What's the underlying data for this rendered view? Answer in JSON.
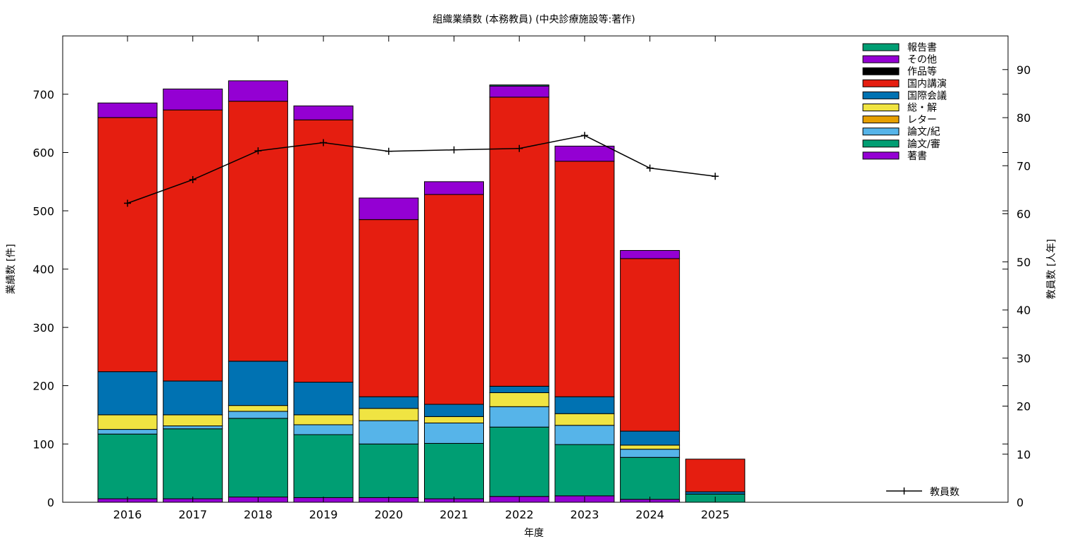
{
  "chart_data": {
    "type": "bar",
    "stacked": true,
    "title": "組織業績数 (本務教員) (中央診療施設等:著作)",
    "xlabel": "年度",
    "ylabel": "業績数 [件]",
    "y2label": "教員数 [人年]",
    "categories": [
      "2016",
      "2017",
      "2018",
      "2019",
      "2020",
      "2021",
      "2022",
      "2023",
      "2024",
      "2025"
    ],
    "ylim": [
      0,
      800
    ],
    "yticks": [
      0,
      100,
      200,
      300,
      400,
      500,
      600,
      700
    ],
    "y2lim": [
      0,
      97
    ],
    "y2ticks": [
      0,
      10,
      20,
      30,
      40,
      50,
      60,
      70,
      80,
      90
    ],
    "grid": false,
    "legend_position": "top-right",
    "series": [
      {
        "name": "著書",
        "color": "#9400d3",
        "values": [
          6,
          6,
          9,
          8,
          8,
          6,
          10,
          11,
          5,
          0
        ]
      },
      {
        "name": "論文/審",
        "color": "#009e73",
        "values": [
          111,
          120,
          135,
          108,
          92,
          95,
          119,
          88,
          72,
          14
        ]
      },
      {
        "name": "論文/紀",
        "color": "#56b4e9",
        "values": [
          8,
          5,
          12,
          17,
          40,
          35,
          35,
          33,
          14,
          0
        ]
      },
      {
        "name": "レター",
        "color": "#e69f00",
        "values": [
          0,
          0,
          0,
          0,
          0,
          0,
          0,
          0,
          0,
          0
        ]
      },
      {
        "name": "総・解",
        "color": "#f0e442",
        "values": [
          25,
          19,
          10,
          17,
          21,
          11,
          24,
          20,
          7,
          0
        ]
      },
      {
        "name": "国際会議",
        "color": "#0072b2",
        "values": [
          74,
          58,
          76,
          56,
          20,
          21,
          11,
          29,
          24,
          4
        ]
      },
      {
        "name": "国内講演",
        "color": "#e51e10",
        "values": [
          436,
          465,
          446,
          450,
          304,
          360,
          496,
          404,
          296,
          56
        ]
      },
      {
        "name": "作品等",
        "color": "#000000",
        "values": [
          0,
          0,
          0,
          0,
          0,
          0,
          0,
          0,
          0,
          0
        ]
      },
      {
        "name": "その他",
        "color": "#9400d3",
        "values": [
          25,
          36,
          35,
          24,
          37,
          22,
          19,
          26,
          14,
          0
        ]
      },
      {
        "name": "報告書",
        "color": "#009e73",
        "values": [
          0,
          0,
          0,
          0,
          0,
          0,
          2,
          0,
          0,
          0
        ]
      }
    ],
    "line_series": {
      "name": "教員数",
      "axis": "y2",
      "color": "#000000",
      "values": [
        62.2,
        67.1,
        73.1,
        74.8,
        73.0,
        73.3,
        73.6,
        76.3,
        69.5,
        67.8
      ]
    }
  }
}
